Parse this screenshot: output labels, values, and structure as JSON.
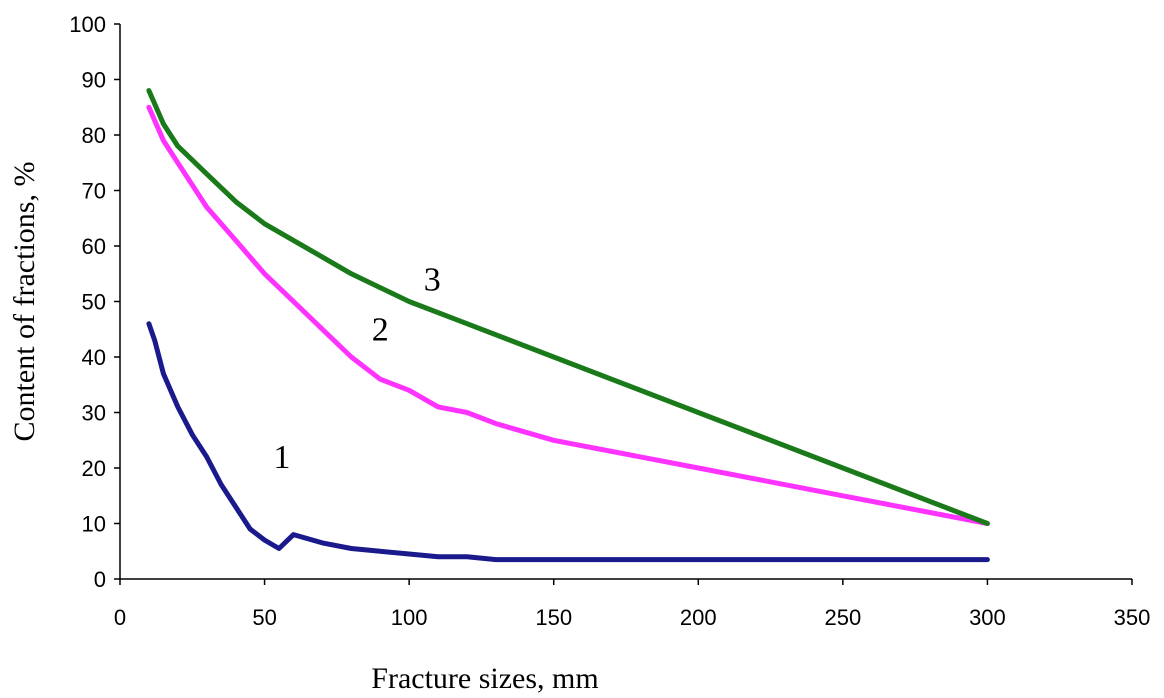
{
  "chart_data": {
    "type": "line",
    "title": "",
    "xlabel": "Fracture sizes, mm",
    "ylabel": "Content of fractions, %",
    "xlim": [
      0,
      350
    ],
    "ylim": [
      0,
      100
    ],
    "x_ticks": [
      "0",
      "50",
      "100",
      "150",
      "200",
      "250",
      "300",
      "350"
    ],
    "y_ticks": [
      "0",
      "10",
      "20",
      "30",
      "40",
      "50",
      "60",
      "70",
      "80",
      "90",
      "100"
    ],
    "grid": false,
    "legend": "none",
    "series": [
      {
        "name": "1",
        "color": "#1a1a8c",
        "label_position": [
          56,
          20
        ],
        "x": [
          10,
          12,
          15,
          20,
          25,
          30,
          35,
          40,
          45,
          50,
          55,
          60,
          70,
          80,
          90,
          100,
          110,
          120,
          130,
          150,
          200,
          250,
          300
        ],
        "y": [
          46,
          43,
          37,
          31,
          26,
          22,
          17,
          13,
          9,
          7,
          5.5,
          8,
          6.5,
          5.5,
          5,
          4.5,
          4,
          4,
          3.5,
          3.5,
          3.5,
          3.5,
          3.5
        ]
      },
      {
        "name": "2",
        "color": "#ff33ff",
        "label_position": [
          90,
          43
        ],
        "x": [
          10,
          15,
          20,
          30,
          40,
          50,
          60,
          70,
          80,
          90,
          100,
          110,
          120,
          130,
          150,
          200,
          250,
          300
        ],
        "y": [
          85,
          79,
          75,
          67,
          61,
          55,
          50,
          45,
          40,
          36,
          34,
          31,
          30,
          28,
          25,
          20,
          15,
          10
        ]
      },
      {
        "name": "3",
        "color": "#1a7a1a",
        "label_position": [
          108,
          52
        ],
        "x": [
          10,
          15,
          20,
          30,
          40,
          50,
          60,
          70,
          80,
          100,
          120,
          150,
          200,
          250,
          300
        ],
        "y": [
          88,
          82,
          78,
          73,
          68,
          64,
          61,
          58,
          55,
          50,
          46,
          40,
          30,
          20,
          10
        ]
      }
    ]
  }
}
